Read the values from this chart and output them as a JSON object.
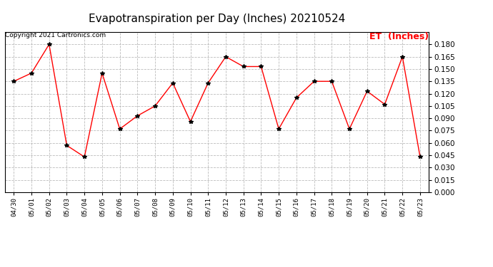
{
  "title": "Evapotranspiration per Day (Inches) 20210524",
  "copyright": "Copyright 2021 Cartronics.com",
  "legend_label": "ET  (Inches)",
  "dates": [
    "04/30",
    "05/01",
    "05/02",
    "05/03",
    "05/04",
    "05/05",
    "05/06",
    "05/07",
    "05/08",
    "05/09",
    "05/10",
    "05/11",
    "05/12",
    "05/13",
    "05/14",
    "05/15",
    "05/16",
    "05/17",
    "05/18",
    "05/19",
    "05/20",
    "05/21",
    "05/22",
    "05/23"
  ],
  "values": [
    0.135,
    0.145,
    0.18,
    0.057,
    0.043,
    0.145,
    0.077,
    0.093,
    0.105,
    0.133,
    0.086,
    0.133,
    0.165,
    0.153,
    0.153,
    0.077,
    0.115,
    0.135,
    0.135,
    0.077,
    0.123,
    0.107,
    0.165,
    0.043
  ],
  "ylim": [
    0.0,
    0.195
  ],
  "yticks": [
    0.0,
    0.015,
    0.03,
    0.045,
    0.06,
    0.075,
    0.09,
    0.105,
    0.12,
    0.135,
    0.15,
    0.165,
    0.18
  ],
  "line_color": "red",
  "marker_color": "black",
  "grid_color": "#aaaaaa",
  "background_color": "white",
  "title_fontsize": 11,
  "copyright_fontsize": 6.5,
  "legend_color": "red",
  "legend_fontsize": 9,
  "tick_fontsize": 7.5,
  "xtick_fontsize": 6.5
}
